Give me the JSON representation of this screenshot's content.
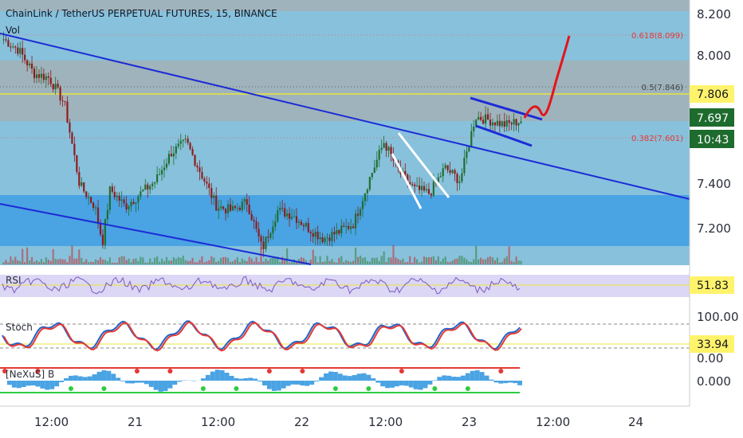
{
  "title": "ChainLink / TetherUS PERPETUAL FUTURES, 15, BINANCE",
  "vol_label": "Vol",
  "price_axis": [
    "8.200",
    "8.000",
    "7.400",
    "7.200"
  ],
  "badges": {
    "level": "7.806",
    "last_price": "7.697",
    "countdown": "10:43",
    "rsi": "51.83",
    "stoch": "33.94"
  },
  "fib_levels": [
    {
      "label": "0.618(8.099)",
      "color": "#e53935"
    },
    {
      "label": "0.5(7.846)",
      "color": "#555555"
    },
    {
      "label": "0.382(7.601)",
      "color": "#e53935"
    }
  ],
  "indicators": {
    "rsi": {
      "label": "RSI"
    },
    "stoch": {
      "label": "Stoch",
      "axis": [
        "100.00",
        "0.00"
      ]
    },
    "nexus": {
      "label": "[NeXuS] B",
      "axis": [
        "0.000"
      ]
    }
  },
  "time_axis": [
    "12:00",
    "21",
    "12:00",
    "22",
    "12:00",
    "23",
    "12:00",
    "24"
  ],
  "colors": {
    "background": "#87c1dc",
    "gray_zone": "#9fb3bc",
    "blue_zone": "#4aa3e3",
    "trendline": "#1c2bd6",
    "projection": "#e3141b",
    "level_line": "#e8e43c",
    "candle_up": "#1f6e2e",
    "candle_down": "#8e1a1a",
    "rsi_line": "#7e57c2",
    "stoch_k": "#1e63c9",
    "stoch_d": "#e53935",
    "badge_bg": "#fff36b",
    "price_badge_bg": "#1e6b2e"
  },
  "chart_data": {
    "type": "candlestick",
    "symbol": "LINKUSDT",
    "interval": "15",
    "last_price": 7.697,
    "key_level": 7.806,
    "fibonacci": {
      "0.618": 8.099,
      "0.5": 7.846,
      "0.382": 7.601
    },
    "close_path": [
      [
        0,
        8.08
      ],
      [
        2,
        8.03
      ],
      [
        4,
        7.92
      ],
      [
        6,
        7.9
      ],
      [
        8,
        7.78
      ],
      [
        10,
        7.4
      ],
      [
        12,
        7.3
      ],
      [
        13,
        7.13
      ],
      [
        14,
        7.38
      ],
      [
        16,
        7.3
      ],
      [
        18,
        7.36
      ],
      [
        20,
        7.42
      ],
      [
        22,
        7.55
      ],
      [
        24,
        7.6
      ],
      [
        26,
        7.45
      ],
      [
        28,
        7.3
      ],
      [
        30,
        7.28
      ],
      [
        32,
        7.32
      ],
      [
        34,
        7.1
      ],
      [
        36,
        7.28
      ],
      [
        38,
        7.26
      ],
      [
        40,
        7.2
      ],
      [
        42,
        7.15
      ],
      [
        44,
        7.18
      ],
      [
        46,
        7.22
      ],
      [
        48,
        7.42
      ],
      [
        50,
        7.6
      ],
      [
        52,
        7.46
      ],
      [
        54,
        7.38
      ],
      [
        56,
        7.36
      ],
      [
        58,
        7.48
      ],
      [
        60,
        7.42
      ],
      [
        62,
        7.72
      ],
      [
        64,
        7.7
      ],
      [
        66,
        7.68
      ],
      [
        68,
        7.7
      ]
    ],
    "rsi_last": 51.83,
    "stoch_last": 33.94,
    "stoch_range": [
      0,
      100
    ]
  }
}
